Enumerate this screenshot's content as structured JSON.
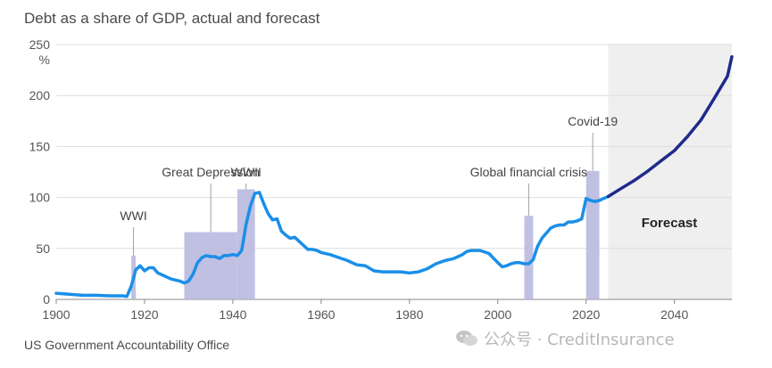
{
  "title": "Debt as a share of GDP, actual and forecast",
  "source": "US Government Accountability Office",
  "watermark": "公众号 · CreditInsurance",
  "colors": {
    "actual_line": "#1a8fe8",
    "forecast_line": "#1f2a8c",
    "event_bar": "#b9b9e0",
    "forecast_bg": "#efefef",
    "grid": "#dddddd",
    "baseline": "#888888"
  },
  "chart_data": {
    "type": "line",
    "title": "Debt as a share of GDP, actual and forecast",
    "ylabel": "%",
    "xlim": [
      1900,
      2053
    ],
    "ylim": [
      0,
      250
    ],
    "x_ticks": [
      1900,
      1920,
      1940,
      1960,
      1980,
      2000,
      2020,
      2040
    ],
    "y_ticks": [
      0,
      50,
      100,
      150,
      200,
      250
    ],
    "grid": true,
    "forecast_region": {
      "from": 2025,
      "to": 2053,
      "label": "Forecast"
    },
    "events": [
      {
        "label": "WWI",
        "x0": 1917,
        "x1": 1918,
        "value": 43
      },
      {
        "label": "Great Depression",
        "x0": 1929,
        "x1": 1941,
        "value": 66
      },
      {
        "label": "WWII",
        "x0": 1941,
        "x1": 1945,
        "value": 108
      },
      {
        "label": "Global financial crisis",
        "x0": 2006,
        "x1": 2008,
        "value": 82
      },
      {
        "label": "Covid-19",
        "x0": 2020,
        "x1": 2023,
        "value": 126
      }
    ],
    "series": [
      {
        "kind": "actual",
        "points": [
          [
            1900,
            6
          ],
          [
            1903,
            5
          ],
          [
            1906,
            4
          ],
          [
            1909,
            4
          ],
          [
            1912,
            3.5
          ],
          [
            1915,
            3.5
          ],
          [
            1916,
            3
          ],
          [
            1917,
            13
          ],
          [
            1918,
            29
          ],
          [
            1919,
            33
          ],
          [
            1920,
            28
          ],
          [
            1921,
            31
          ],
          [
            1922,
            31
          ],
          [
            1923,
            26
          ],
          [
            1924,
            24
          ],
          [
            1925,
            22
          ],
          [
            1926,
            20
          ],
          [
            1927,
            19
          ],
          [
            1928,
            18
          ],
          [
            1929,
            16
          ],
          [
            1930,
            18
          ],
          [
            1931,
            25
          ],
          [
            1932,
            36
          ],
          [
            1933,
            41
          ],
          [
            1934,
            43
          ],
          [
            1935,
            42
          ],
          [
            1936,
            42
          ],
          [
            1937,
            40
          ],
          [
            1938,
            43
          ],
          [
            1939,
            43
          ],
          [
            1940,
            44
          ],
          [
            1941,
            43
          ],
          [
            1942,
            48
          ],
          [
            1943,
            74
          ],
          [
            1944,
            92
          ],
          [
            1945,
            104
          ],
          [
            1946,
            105
          ],
          [
            1947,
            94
          ],
          [
            1948,
            84
          ],
          [
            1949,
            78
          ],
          [
            1950,
            79
          ],
          [
            1951,
            67
          ],
          [
            1952,
            63
          ],
          [
            1953,
            60
          ],
          [
            1954,
            61
          ],
          [
            1955,
            57
          ],
          [
            1956,
            53
          ],
          [
            1957,
            49
          ],
          [
            1958,
            49
          ],
          [
            1959,
            48
          ],
          [
            1960,
            46
          ],
          [
            1962,
            44
          ],
          [
            1964,
            41
          ],
          [
            1966,
            38
          ],
          [
            1968,
            34
          ],
          [
            1970,
            33
          ],
          [
            1972,
            28
          ],
          [
            1974,
            27
          ],
          [
            1976,
            27
          ],
          [
            1978,
            27
          ],
          [
            1980,
            26
          ],
          [
            1982,
            27
          ],
          [
            1984,
            30
          ],
          [
            1986,
            35
          ],
          [
            1988,
            38
          ],
          [
            1990,
            40
          ],
          [
            1991,
            42
          ],
          [
            1992,
            44
          ],
          [
            1993,
            47
          ],
          [
            1994,
            48
          ],
          [
            1996,
            48
          ],
          [
            1998,
            45
          ],
          [
            2000,
            36
          ],
          [
            2001,
            32
          ],
          [
            2002,
            33
          ],
          [
            2003,
            35
          ],
          [
            2004,
            36
          ],
          [
            2005,
            36
          ],
          [
            2006,
            35
          ],
          [
            2007,
            35
          ],
          [
            2008,
            39
          ],
          [
            2009,
            52
          ],
          [
            2010,
            60
          ],
          [
            2011,
            65
          ],
          [
            2012,
            70
          ],
          [
            2013,
            72
          ],
          [
            2014,
            73
          ],
          [
            2015,
            73
          ],
          [
            2016,
            76
          ],
          [
            2017,
            76
          ],
          [
            2018,
            77
          ],
          [
            2019,
            79
          ],
          [
            2020,
            99
          ],
          [
            2021,
            97
          ],
          [
            2022,
            96
          ],
          [
            2023,
            97
          ],
          [
            2024,
            99
          ],
          [
            2025,
            101
          ]
        ]
      },
      {
        "kind": "forecast",
        "points": [
          [
            2025,
            101
          ],
          [
            2028,
            109
          ],
          [
            2031,
            117
          ],
          [
            2034,
            126
          ],
          [
            2037,
            136
          ],
          [
            2040,
            146
          ],
          [
            2043,
            160
          ],
          [
            2046,
            176
          ],
          [
            2049,
            197
          ],
          [
            2052,
            219
          ],
          [
            2053,
            238
          ]
        ]
      }
    ]
  }
}
